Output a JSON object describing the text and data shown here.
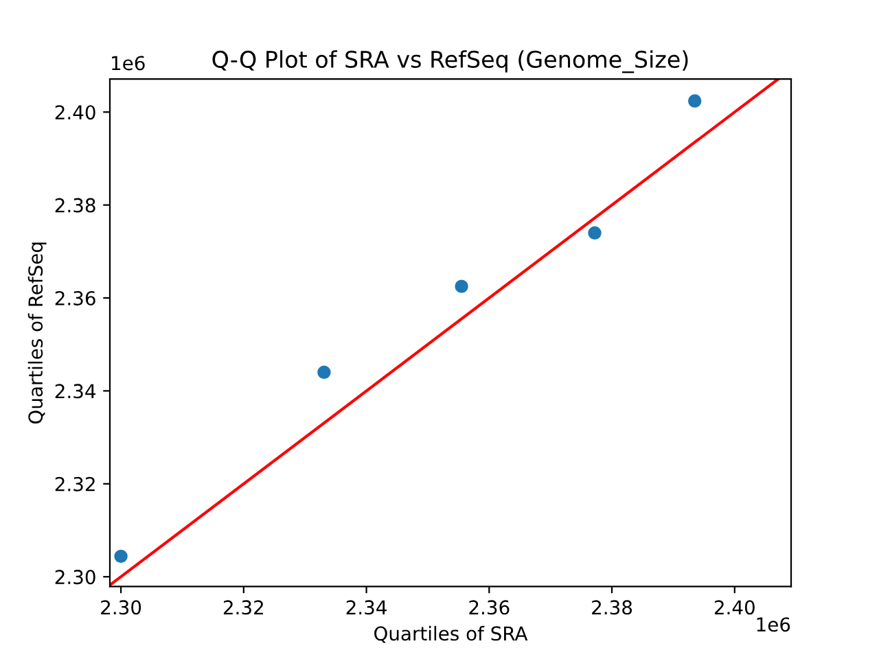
{
  "chart_data": {
    "type": "scatter",
    "title": "Q-Q Plot of SRA vs RefSeq (Genome_Size)",
    "xlabel": "Quartiles of SRA",
    "ylabel": "Quartiles of RefSeq",
    "annotations": [
      "1e6",
      "1e6"
    ],
    "series": [
      {
        "color": "#1f77b4",
        "marker": "circle",
        "x": [
          2.3,
          2.3331,
          2.3555,
          2.3772,
          2.3935
        ],
        "values": [
          2.3044,
          2.344,
          2.3625,
          2.374,
          2.4024
        ]
      },
      {
        "type": "line",
        "color": "#ff0000",
        "marker": "none",
        "line_style": "solid",
        "x": [
          2.2983,
          2.407
        ],
        "values": [
          2.2983,
          2.407
        ]
      }
    ],
    "xlim": [
      2.2982,
      2.4092
    ],
    "ylim": [
      2.2979,
      2.4071
    ],
    "xticks": [
      {
        "value": 2.3,
        "label": "2.30"
      },
      {
        "value": 2.32,
        "label": "2.32"
      },
      {
        "value": 2.34,
        "label": "2.34"
      },
      {
        "value": 2.36,
        "label": "2.36"
      },
      {
        "value": 2.38,
        "label": "2.38"
      },
      {
        "value": 2.4,
        "label": "2.40"
      }
    ],
    "yticks": [
      {
        "value": 2.3,
        "label": "2.30"
      },
      {
        "value": 2.32,
        "label": "2.32"
      },
      {
        "value": 2.34,
        "label": "2.34"
      },
      {
        "value": 2.36,
        "label": "2.36"
      },
      {
        "value": 2.38,
        "label": "2.38"
      },
      {
        "value": 2.4,
        "label": "2.40"
      }
    ],
    "grid": false
  }
}
